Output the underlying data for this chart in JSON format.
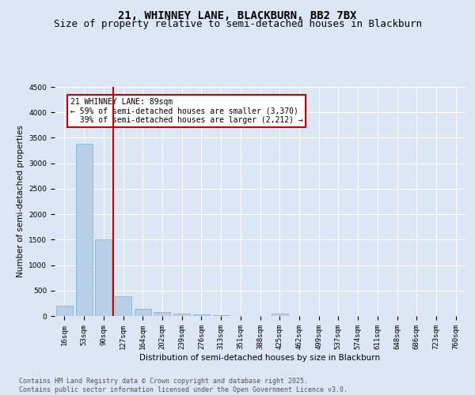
{
  "title1": "21, WHINNEY LANE, BLACKBURN, BB2 7BX",
  "title2": "Size of property relative to semi-detached houses in Blackburn",
  "xlabel": "Distribution of semi-detached houses by size in Blackburn",
  "ylabel": "Number of semi-detached properties",
  "bar_labels": [
    "16sqm",
    "53sqm",
    "90sqm",
    "127sqm",
    "164sqm",
    "202sqm",
    "239sqm",
    "276sqm",
    "313sqm",
    "351sqm",
    "388sqm",
    "425sqm",
    "462sqm",
    "499sqm",
    "537sqm",
    "574sqm",
    "611sqm",
    "648sqm",
    "686sqm",
    "723sqm",
    "760sqm"
  ],
  "bar_values": [
    200,
    3380,
    1500,
    390,
    135,
    75,
    40,
    25,
    10,
    5,
    0,
    40,
    0,
    0,
    0,
    0,
    0,
    0,
    0,
    0,
    0
  ],
  "bar_color": "#b8cfe8",
  "bar_edge_color": "#7aaed4",
  "red_line_color": "#cc0000",
  "annotation_text": "21 WHINNEY LANE: 89sqm\n← 59% of semi-detached houses are smaller (3,370)\n  39% of semi-detached houses are larger (2,212) →",
  "ylim": [
    0,
    4500
  ],
  "yticks": [
    0,
    500,
    1000,
    1500,
    2000,
    2500,
    3000,
    3500,
    4000,
    4500
  ],
  "bg_color": "#dce6f5",
  "grid_color": "#ffffff",
  "footer_text": "Contains HM Land Registry data © Crown copyright and database right 2025.\nContains public sector information licensed under the Open Government Licence v3.0.",
  "title_fontsize": 10,
  "subtitle_fontsize": 9,
  "axis_label_fontsize": 7.5,
  "tick_fontsize": 6.5,
  "footer_fontsize": 6
}
